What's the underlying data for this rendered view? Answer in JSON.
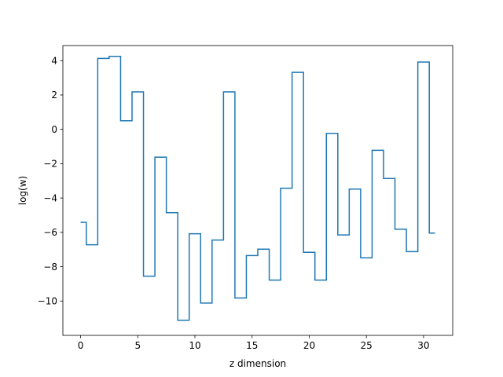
{
  "chart_data": {
    "type": "line",
    "style": "step-mid",
    "title": "",
    "xlabel": "z dimension",
    "ylabel": "log(w)",
    "xlim": [
      -1.55,
      32.55
    ],
    "ylim": [
      -12.0,
      4.88
    ],
    "xticks": [
      0,
      5,
      10,
      15,
      20,
      25,
      30
    ],
    "xtick_labels": [
      "0",
      "5",
      "10",
      "15",
      "20",
      "25",
      "30"
    ],
    "yticks": [
      -10,
      -8,
      -6,
      -4,
      -2,
      0,
      2,
      4
    ],
    "ytick_labels": [
      "−10",
      "−8",
      "−6",
      "−4",
      "−2",
      "0",
      "2",
      "4"
    ],
    "grid": false,
    "legend": "none",
    "series": [
      {
        "color": "#1f77b4",
        "x": [
          0,
          1,
          2,
          3,
          4,
          5,
          6,
          7,
          8,
          9,
          10,
          11,
          12,
          13,
          14,
          15,
          16,
          17,
          18,
          19,
          20,
          21,
          22,
          23,
          24,
          25,
          26,
          27,
          28,
          29,
          30,
          31
        ],
        "y": [
          -5.42,
          -6.72,
          4.13,
          4.25,
          0.5,
          2.18,
          -8.55,
          -1.62,
          -4.85,
          -11.12,
          -6.08,
          -10.12,
          -6.45,
          2.18,
          -9.82,
          -7.35,
          -6.98,
          -8.78,
          -3.43,
          3.32,
          -7.16,
          -8.78,
          -0.24,
          -6.15,
          -3.48,
          -7.48,
          -1.22,
          -2.86,
          -5.82,
          -7.12,
          3.92,
          -6.04
        ]
      }
    ]
  }
}
